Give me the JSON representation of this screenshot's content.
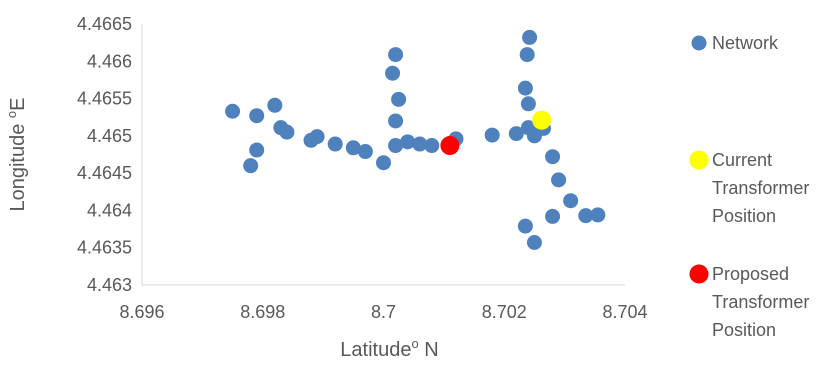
{
  "chart_data": {
    "type": "scatter",
    "xlabel": "Latitude",
    "xlabel_sup": "o",
    "xlabel_suffix": " N",
    "ylabel": "Longitude ",
    "ylabel_sup": "o",
    "ylabel_suffix": "E",
    "xlim": [
      8.696,
      8.704
    ],
    "ylim": [
      4.463,
      4.4665
    ],
    "x_ticks": [
      "8.696",
      "8.698",
      "8.7",
      "8.702",
      "8.704"
    ],
    "y_ticks": [
      "4.463",
      "4.4635",
      "4.464",
      "4.4645",
      "4.465",
      "4.4655",
      "4.466",
      "4.4665"
    ],
    "grid": false,
    "legend_position": "right",
    "series": [
      {
        "name": "Network",
        "color": "#4F81BD",
        "points": [
          [
            8.6975,
            4.46533
          ],
          [
            8.6979,
            4.46527
          ],
          [
            8.6982,
            4.46541
          ],
          [
            8.6983,
            4.46511
          ],
          [
            8.6984,
            4.46505
          ],
          [
            8.6979,
            4.46481
          ],
          [
            8.6978,
            4.4646
          ],
          [
            8.6988,
            4.46494
          ],
          [
            8.6989,
            4.46499
          ],
          [
            8.6992,
            4.46489
          ],
          [
            8.6995,
            4.46484
          ],
          [
            8.6997,
            4.46479
          ],
          [
            8.7,
            4.46464
          ],
          [
            8.7002,
            4.46487
          ],
          [
            8.7004,
            4.46492
          ],
          [
            8.7006,
            4.46489
          ],
          [
            8.7008,
            4.46487
          ],
          [
            8.7012,
            4.46496
          ],
          [
            8.7018,
            4.46501
          ],
          [
            8.7002,
            4.4652
          ],
          [
            8.70025,
            4.46549
          ],
          [
            8.70015,
            4.46584
          ],
          [
            8.7002,
            4.46609
          ],
          [
            8.7022,
            4.46503
          ],
          [
            8.7024,
            4.46511
          ],
          [
            8.7025,
            4.465
          ],
          [
            8.7024,
            4.46543
          ],
          [
            8.70235,
            4.46564
          ],
          [
            8.70238,
            4.46609
          ],
          [
            8.70242,
            4.46632
          ],
          [
            8.7028,
            4.46472
          ],
          [
            8.7029,
            4.46441
          ],
          [
            8.7031,
            4.46413
          ],
          [
            8.7028,
            4.46392
          ],
          [
            8.70335,
            4.46393
          ],
          [
            8.70355,
            4.46394
          ],
          [
            8.70235,
            4.46379
          ],
          [
            8.7025,
            4.46357
          ],
          [
            8.70265,
            4.4651
          ]
        ]
      },
      {
        "name": "Current Transformer Position",
        "color": "#FFFF00",
        "points": [
          [
            8.70262,
            4.46521
          ]
        ]
      },
      {
        "name": "Proposed Transformer Position",
        "color": "#FF0000",
        "points": [
          [
            8.7011,
            4.46487
          ]
        ]
      }
    ],
    "legend": [
      {
        "lines": [
          "Network"
        ],
        "color": "#4F81BD"
      },
      {
        "lines": [
          "Current",
          "Transformer",
          "Position"
        ],
        "color": "#FFFF00"
      },
      {
        "lines": [
          "Proposed",
          "Transformer",
          "Position"
        ],
        "color": "#FF0000"
      }
    ]
  }
}
